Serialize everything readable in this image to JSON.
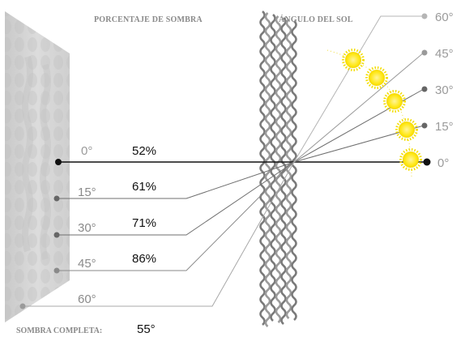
{
  "headers": {
    "shade_percentage": "PORCENTAJE DE SOMBRA",
    "sun_angle": "ÁNGULO DEL SOL"
  },
  "footer": {
    "label": "SOMBRA COMPLETA:",
    "value": "55°"
  },
  "rows": [
    {
      "angle": "0°",
      "shade": "52%",
      "sun_angle": "0°",
      "primary": true
    },
    {
      "angle": "15°",
      "shade": "61%",
      "sun_angle": "15°"
    },
    {
      "angle": "30°",
      "shade": "71%",
      "sun_angle": "30°"
    },
    {
      "angle": "45°",
      "shade": "86%",
      "sun_angle": "45°"
    },
    {
      "angle": "60°",
      "shade": "",
      "sun_angle": "60°"
    }
  ],
  "colors": {
    "primary_line": "#111111",
    "secondary_line": "#6f6f6f",
    "light_line": "#b5b5b5",
    "sun_fill": "#ffee22",
    "sun_ray": "#f3dd00",
    "panel": "#d8d8d8",
    "screen": "#888888"
  },
  "icons": {
    "sun": "sun-icon",
    "shade_wall": "shade-wall",
    "mesh_screen": "mesh-screen"
  }
}
